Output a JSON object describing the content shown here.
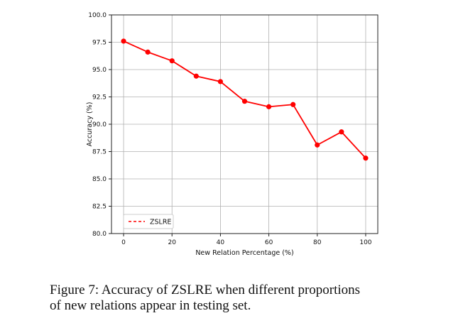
{
  "chart_data": {
    "type": "line",
    "x": [
      0,
      10,
      20,
      30,
      40,
      50,
      60,
      70,
      80,
      90,
      100
    ],
    "series": [
      {
        "name": "ZSLRE",
        "values": [
          97.6,
          96.6,
          95.8,
          94.4,
          93.9,
          92.1,
          91.6,
          91.8,
          88.1,
          89.3,
          86.9
        ],
        "color": "#ff0000",
        "marker": "circle"
      }
    ],
    "xlabel": "New Relation Percentage (%)",
    "ylabel": "Accuracy (%)",
    "xlim": [
      -5,
      105
    ],
    "ylim": [
      80.0,
      100.0
    ],
    "xticks": [
      0,
      20,
      40,
      60,
      80,
      100
    ],
    "yticks": [
      80.0,
      82.5,
      85.0,
      87.5,
      90.0,
      92.5,
      95.0,
      97.5,
      100.0
    ],
    "grid": true,
    "legend_position": "lower-left"
  },
  "caption": {
    "line1": "Figure 7:  Accuracy of ZSLRE when different proportions",
    "line2": "of new relations appear in testing set."
  }
}
